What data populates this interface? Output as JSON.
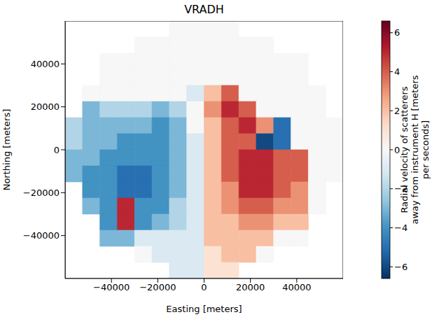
{
  "chart_data": {
    "type": "heatmap",
    "title": "VRADH",
    "x_label": "Easting [meters]",
    "y_label": "Northing [meters]",
    "xlim": [
      -60000,
      60000
    ],
    "ylim": [
      -60000,
      60000
    ],
    "xticks": [
      {
        "value": -40000,
        "label": "−40000"
      },
      {
        "value": -20000,
        "label": "−20000"
      },
      0,
      20000,
      40000
    ],
    "yticks": [
      {
        "value": -40000,
        "label": "−40000"
      },
      {
        "value": -20000,
        "label": "−20000"
      },
      0,
      20000,
      40000
    ],
    "x": [
      -56250,
      -48750,
      -41250,
      -33750,
      -26250,
      -18750,
      -11250,
      -3750,
      3750,
      11250,
      18750,
      26250,
      33750,
      41250,
      48750,
      56250
    ],
    "y": [
      56250,
      48750,
      41250,
      33750,
      26250,
      18750,
      11250,
      3750,
      -3750,
      -11250,
      -18750,
      -26250,
      -33750,
      -41250,
      -48750,
      -56250
    ],
    "cells": [
      [
        null,
        null,
        null,
        null,
        null,
        null,
        0,
        0,
        0,
        0,
        null,
        null,
        null,
        null,
        null,
        null
      ],
      [
        null,
        null,
        null,
        null,
        0,
        0,
        0,
        0,
        0,
        0,
        0,
        0,
        null,
        null,
        null,
        null
      ],
      [
        null,
        null,
        0,
        0,
        0,
        0,
        0,
        0,
        0,
        0,
        0,
        0,
        0,
        0,
        null,
        null
      ],
      [
        null,
        null,
        0,
        0,
        0,
        0,
        0,
        0,
        0,
        0,
        0,
        0,
        0,
        0,
        null,
        null
      ],
      [
        null,
        0,
        0,
        0,
        0,
        0,
        0,
        -1,
        2,
        4,
        0,
        0,
        0,
        0,
        0,
        null
      ],
      [
        null,
        -3,
        -2,
        -2,
        -2,
        -3,
        -2,
        0,
        3,
        5,
        4,
        0,
        0,
        0,
        0,
        null
      ],
      [
        -2,
        -3,
        -3,
        -3,
        -3,
        -4,
        -3,
        0,
        2,
        4,
        5,
        3,
        -5,
        0,
        0,
        0
      ],
      [
        -2,
        -3,
        -3,
        -4,
        -4,
        -4,
        -3,
        -1,
        2,
        4,
        4,
        -6,
        -5,
        0,
        0,
        0
      ],
      [
        -3,
        -3,
        -4,
        -4,
        -4,
        -4,
        -3,
        -1,
        2,
        4,
        5,
        5,
        4,
        4,
        0,
        0
      ],
      [
        -3,
        -4,
        -4,
        -5,
        -5,
        -4,
        -3,
        -1,
        2,
        4,
        5,
        5,
        4,
        4,
        0,
        0
      ],
      [
        null,
        -4,
        -4,
        -5,
        -5,
        -4,
        -3,
        -1,
        2,
        3,
        5,
        5,
        4,
        3,
        0,
        null
      ],
      [
        null,
        -3,
        -4,
        5,
        -4,
        -4,
        -2,
        -1,
        2,
        3,
        4,
        4,
        3,
        3,
        0,
        null
      ],
      [
        null,
        null,
        -4,
        5,
        -4,
        -3,
        -2,
        -1,
        2,
        2,
        3,
        3,
        2,
        2,
        null,
        null
      ],
      [
        null,
        null,
        -3,
        -3,
        -1,
        -1,
        -1,
        -1,
        2,
        2,
        2,
        2,
        0,
        0,
        null,
        null
      ],
      [
        null,
        null,
        null,
        null,
        0,
        -1,
        -1,
        -1,
        1,
        2,
        2,
        0,
        null,
        null,
        null,
        null
      ],
      [
        null,
        null,
        null,
        null,
        null,
        null,
        -1,
        -1,
        1,
        1,
        null,
        null,
        null,
        null,
        null,
        null
      ]
    ],
    "colorbar": {
      "label": "Radial velocity of scatterers away from instrument H [meters per seconds]",
      "range": [
        -6.6,
        6.6
      ],
      "ticks": [
        {
          "value": -6,
          "label": "−6"
        },
        {
          "value": -4,
          "label": "−4"
        },
        {
          "value": -2,
          "label": "−2"
        },
        0,
        2,
        4,
        6
      ]
    }
  }
}
